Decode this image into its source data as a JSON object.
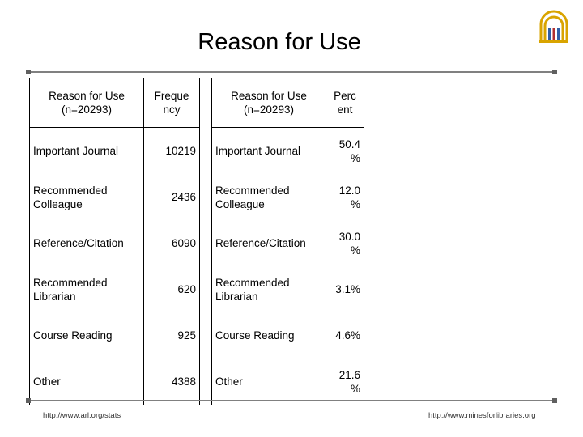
{
  "title": "Reason for Use",
  "table": {
    "headers": [
      "Reason for Use (n=20293)",
      "Freque ncy",
      "Reason for Use (n=20293)",
      "Perc ent"
    ],
    "rows": [
      {
        "reason_a": "Important Journal",
        "frequency": "10219",
        "reason_b": "Important Journal",
        "percent": "50.4 %"
      },
      {
        "reason_a": "Recommended Colleague",
        "frequency": "2436",
        "reason_b": "Recommended Colleague",
        "percent": "12.0 %"
      },
      {
        "reason_a": "Reference/Citation",
        "frequency": "6090",
        "reason_b": "Reference/Citation",
        "percent": "30.0 %"
      },
      {
        "reason_a": "Recommended Librarian",
        "frequency": "620",
        "reason_b": "Recommended Librarian",
        "percent": "3.1%"
      },
      {
        "reason_a": "Course Reading",
        "frequency": "925",
        "reason_b": "Course Reading",
        "percent": "4.6%"
      },
      {
        "reason_a": "Other",
        "frequency": "4388",
        "reason_b": "Other",
        "percent": "21.6 %"
      }
    ]
  },
  "footer": {
    "left_url": "http://www.arl.org/stats",
    "right_url": "http://www.minesforlibraries.org"
  },
  "colors": {
    "logo_gold": "#d9a400",
    "logo_blue": "#2f5fa8",
    "logo_red": "#b03030",
    "rule_gray": "#808080"
  },
  "icons": {
    "logo": "arl-logo-icon"
  }
}
